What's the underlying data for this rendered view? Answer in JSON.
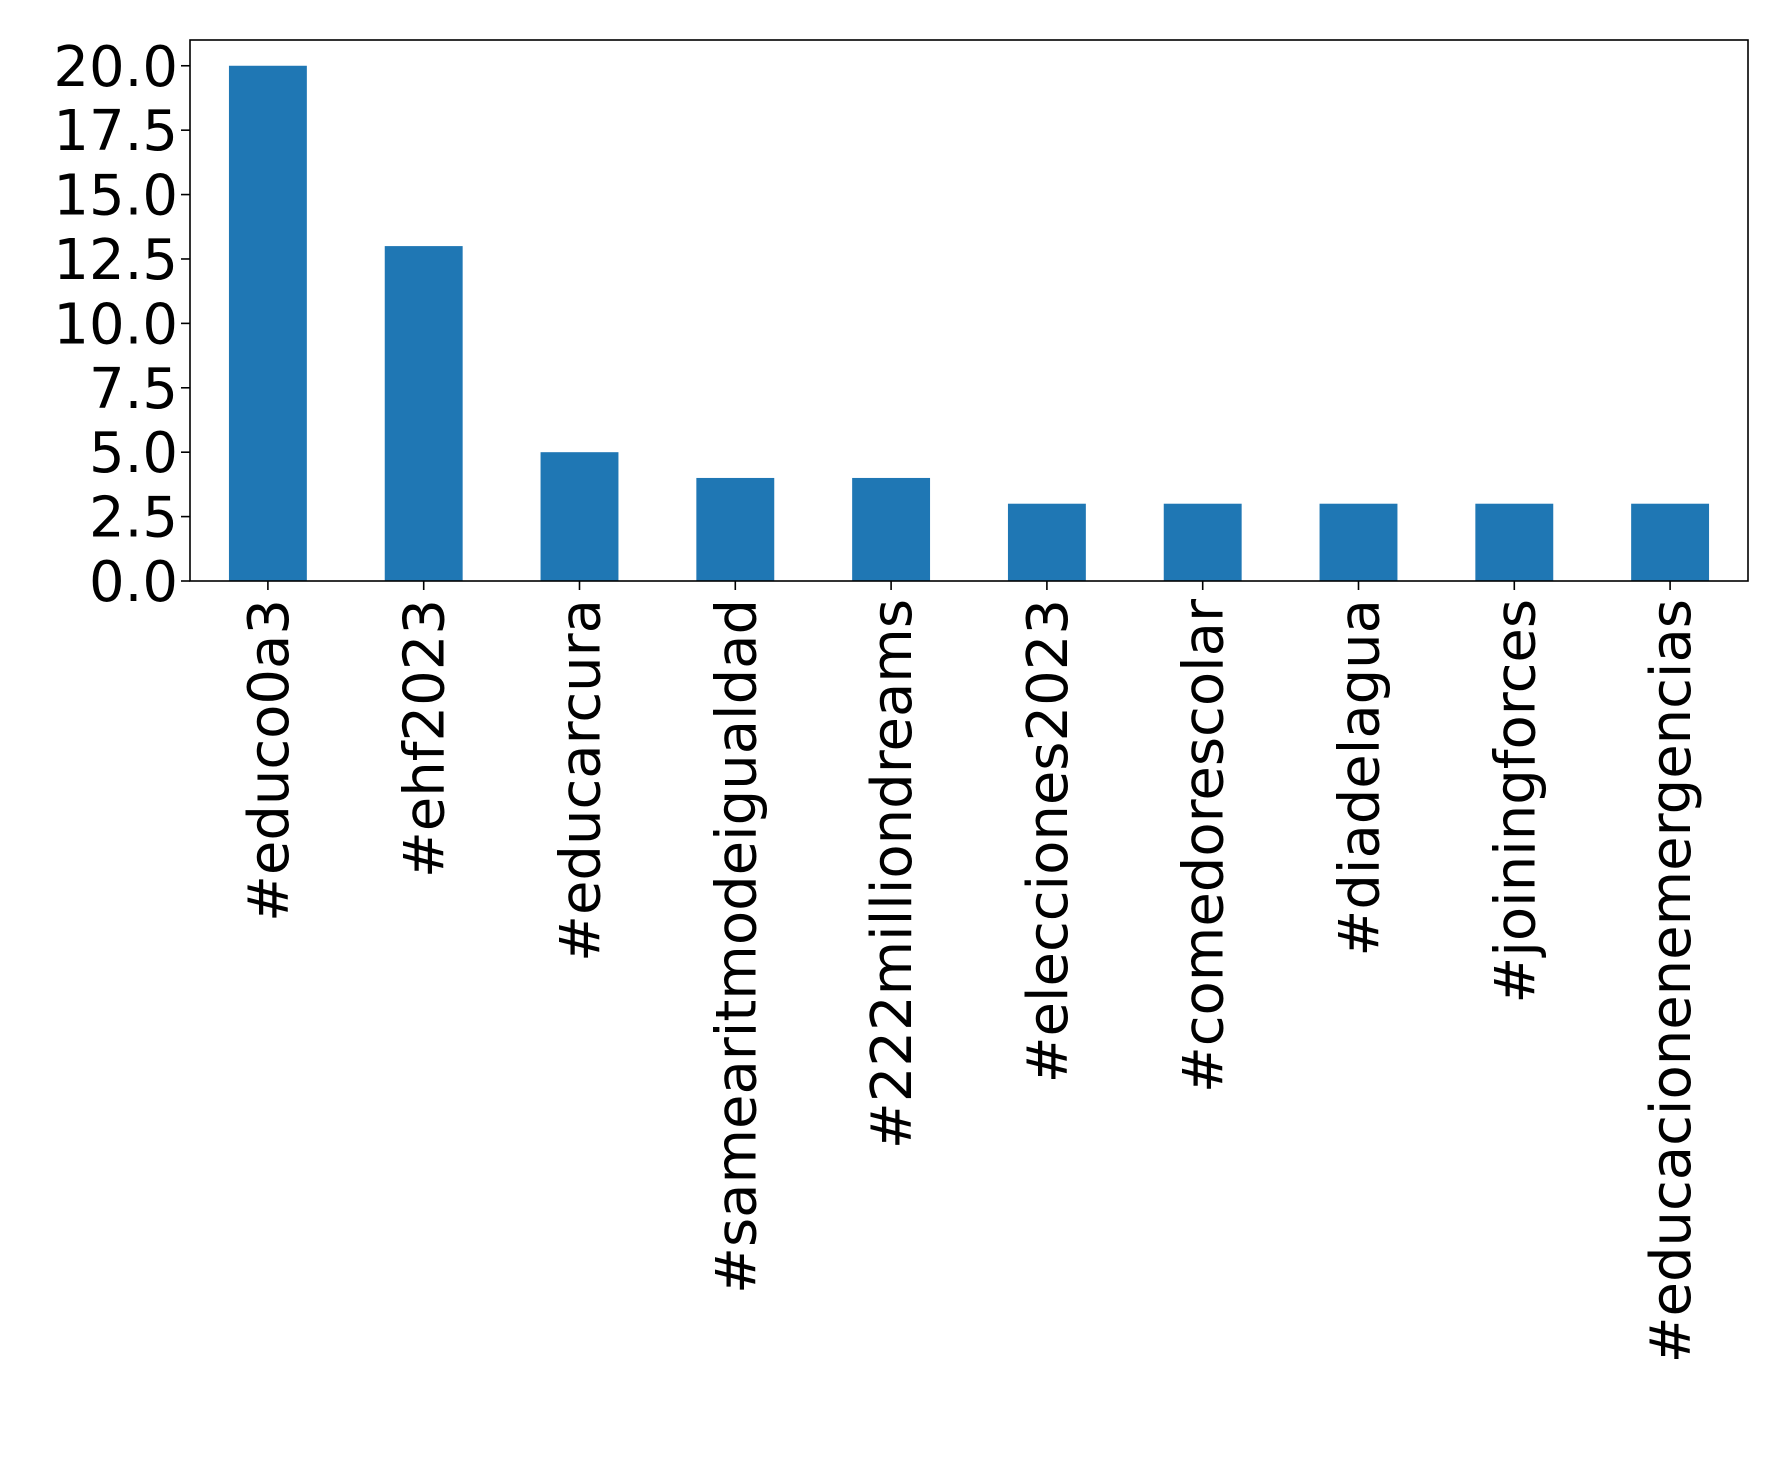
{
  "chart_data": {
    "type": "bar",
    "title": "",
    "xlabel": "",
    "ylabel": "",
    "categories": [
      "#educo0a3",
      "#ehf2023",
      "#educarcura",
      "#samearitmodeigualdad",
      "#222milliondreams",
      "#elecciones2023",
      "#comedorescolar",
      "#diadelagua",
      "#joiningforces",
      "#educacionenemergencias"
    ],
    "values": [
      20,
      13,
      5,
      4,
      4,
      3,
      3,
      3,
      3,
      3
    ],
    "ylim": [
      0,
      21
    ],
    "yticks": [
      "0.0",
      "2.5",
      "5.0",
      "7.5",
      "10.0",
      "12.5",
      "15.0",
      "17.5",
      "20.0"
    ],
    "ytick_values": [
      0,
      2.5,
      5,
      7.5,
      10,
      12.5,
      15,
      17.5,
      20
    ],
    "bar_color": "#1f77b4",
    "grid": false,
    "legend": "none"
  }
}
